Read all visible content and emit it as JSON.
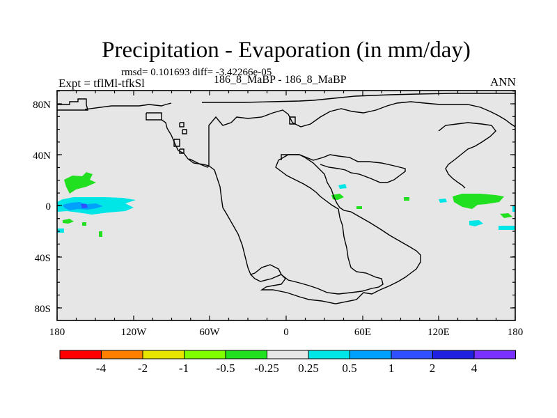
{
  "title": "Precipitation - Evaporation (in mm/day)",
  "stats": "rmsd= 0.101693 diff= -3.42266e-05",
  "experiment": "Expt = tflMl-tfkSl",
  "case": "186_8_MaBP - 186_8_MaBP",
  "season": "ANN",
  "map": {
    "lat_labels": [
      "80N",
      "40N",
      "0",
      "40S",
      "80S"
    ],
    "lon_labels": [
      "180",
      "120W",
      "60W",
      "0",
      "60E",
      "120E",
      "180"
    ]
  },
  "colorbar": {
    "colors": [
      "#ff0000",
      "#ff8000",
      "#e6e600",
      "#80ff00",
      "#20e020",
      "#e6e6e6",
      "#00e6e6",
      "#00a0ff",
      "#3050ff",
      "#2020e0",
      "#7a30ff"
    ],
    "labels": [
      "-4",
      "-2",
      "-1",
      "-0.5",
      "-0.25",
      "0.25",
      "0.5",
      "1",
      "2",
      "4"
    ]
  }
}
